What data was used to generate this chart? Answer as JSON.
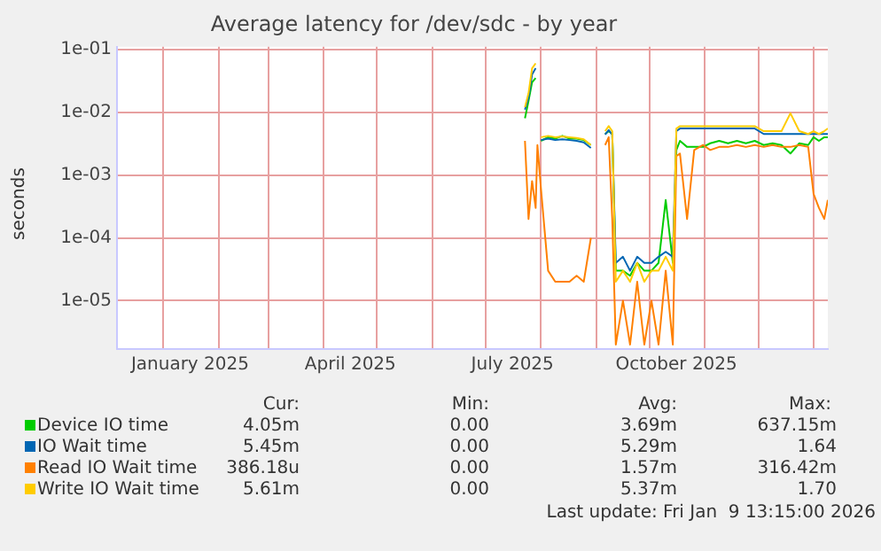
{
  "chart_data": {
    "type": "line",
    "title": "Average latency for /dev/sdc - by year",
    "ylabel": "seconds",
    "log": true,
    "grid": true,
    "legend": "bottom",
    "marker": "none",
    "line_style": "solid",
    "xlim": [
      "2024-12-06",
      "2026-01-09"
    ],
    "xticks": [
      {
        "value": "2025-01-01",
        "label": null
      },
      {
        "value": "2025-01-16",
        "label": "January 2025"
      },
      {
        "value": "2025-02-01",
        "label": null
      },
      {
        "value": "2025-03-01",
        "label": null
      },
      {
        "value": "2025-04-01",
        "label": null
      },
      {
        "value": "2025-04-16",
        "label": "April 2025"
      },
      {
        "value": "2025-05-01",
        "label": null
      },
      {
        "value": "2025-06-01",
        "label": null
      },
      {
        "value": "2025-07-01",
        "label": null
      },
      {
        "value": "2025-07-16",
        "label": "July 2025"
      },
      {
        "value": "2025-08-01",
        "label": null
      },
      {
        "value": "2025-09-01",
        "label": null
      },
      {
        "value": "2025-10-01",
        "label": null
      },
      {
        "value": "2025-10-16",
        "label": "October 2025"
      },
      {
        "value": "2025-11-01",
        "label": null
      },
      {
        "value": "2025-12-01",
        "label": null
      },
      {
        "value": "2026-01-01",
        "label": null
      }
    ],
    "ylim": [
      1.7e-06,
      0.11
    ],
    "yticks": [
      {
        "value": 1e-05,
        "label": "1e-05"
      },
      {
        "value": 0.0001,
        "label": "1e-04"
      },
      {
        "value": 0.001,
        "label": "1e-03"
      },
      {
        "value": 0.01,
        "label": "1e-02"
      },
      {
        "value": 0.1,
        "label": "1e-01"
      }
    ],
    "x": [
      "2025-07-23",
      "2025-07-25",
      "2025-07-27",
      "2025-07-29",
      "2025-07-30",
      "2025-08-01",
      "2025-08-05",
      "2025-08-09",
      "2025-08-13",
      "2025-08-17",
      "2025-08-21",
      "2025-08-25",
      "2025-08-29",
      "2025-08-31",
      "2025-09-06",
      "2025-09-08",
      "2025-09-10",
      "2025-09-12",
      "2025-09-16",
      "2025-09-20",
      "2025-09-24",
      "2025-09-28",
      "2025-10-02",
      "2025-10-06",
      "2025-10-10",
      "2025-10-14",
      "2025-10-16",
      "2025-10-18",
      "2025-10-22",
      "2025-10-26",
      "2025-10-31",
      "2025-11-04",
      "2025-11-09",
      "2025-11-14",
      "2025-11-19",
      "2025-11-24",
      "2025-11-29",
      "2025-12-04",
      "2025-12-09",
      "2025-12-14",
      "2025-12-19",
      "2025-12-24",
      "2025-12-29",
      "2026-01-01",
      "2026-01-04",
      "2026-01-07",
      "2026-01-09"
    ],
    "series": [
      {
        "name": "Device IO time",
        "color": "#00cc00",
        "values": [
          0.008,
          0.015,
          0.03,
          0.035,
          null,
          0.0035,
          0.004,
          0.0038,
          0.0042,
          0.0038,
          0.0038,
          0.0036,
          0.003,
          null,
          0.0045,
          0.005,
          0.0045,
          3e-05,
          3e-05,
          2.5e-05,
          4e-05,
          3e-05,
          3e-05,
          4e-05,
          0.0004,
          4e-05,
          0.0025,
          0.0035,
          0.0028,
          0.0028,
          0.0028,
          0.0032,
          0.0035,
          0.0032,
          0.0035,
          0.0032,
          0.0035,
          0.003,
          0.0032,
          0.003,
          0.0022,
          0.0032,
          0.003,
          0.004,
          0.0035,
          0.004,
          0.004
        ]
      },
      {
        "name": "IO Wait time",
        "color": "#0066b3",
        "values": [
          0.011,
          0.017,
          0.04,
          0.05,
          null,
          0.0036,
          0.0038,
          0.0036,
          0.0037,
          0.0036,
          0.0035,
          0.0033,
          0.0027,
          null,
          0.0044,
          0.0052,
          0.0044,
          4e-05,
          5e-05,
          3e-05,
          5e-05,
          4e-05,
          4e-05,
          5e-05,
          6e-05,
          5e-05,
          0.005,
          0.0055,
          0.0055,
          0.0055,
          0.0055,
          0.0055,
          0.0055,
          0.0055,
          0.0055,
          0.0055,
          0.0055,
          0.0045,
          0.0045,
          0.0045,
          0.0045,
          0.0045,
          0.0045,
          0.0045,
          0.0045,
          0.0045,
          0.0045
        ]
      },
      {
        "name": "Read IO Wait time",
        "color": "#ff8000",
        "values": [
          0.0035,
          0.0002,
          0.0008,
          0.0003,
          0.003,
          0.0006,
          3e-05,
          2e-05,
          2e-05,
          2e-05,
          2.5e-05,
          2e-05,
          0.0001,
          null,
          0.003,
          0.004,
          0.0002,
          2e-06,
          1e-05,
          2e-06,
          2e-05,
          2e-06,
          1e-05,
          2e-06,
          3e-05,
          2e-06,
          0.002,
          0.0022,
          0.0002,
          0.0025,
          0.003,
          0.0025,
          0.0028,
          0.0028,
          0.003,
          0.0028,
          0.003,
          0.0028,
          0.003,
          0.0028,
          0.0028,
          0.003,
          0.0028,
          0.0005,
          0.0003,
          0.0002,
          0.0004
        ]
      },
      {
        "name": "Write IO Wait time",
        "color": "#ffcc00",
        "values": [
          0.012,
          0.02,
          0.05,
          0.06,
          null,
          0.004,
          0.0042,
          0.004,
          0.0041,
          0.004,
          0.0039,
          0.0037,
          0.003,
          null,
          0.005,
          0.006,
          0.005,
          2e-05,
          3e-05,
          2e-05,
          4e-05,
          2e-05,
          3e-05,
          3e-05,
          5e-05,
          3e-05,
          0.0055,
          0.006,
          0.006,
          0.006,
          0.006,
          0.006,
          0.006,
          0.006,
          0.006,
          0.006,
          0.006,
          0.005,
          0.005,
          0.005,
          0.0096,
          0.005,
          0.0045,
          0.005,
          0.0045,
          0.005,
          0.0055
        ]
      }
    ],
    "annotations": [
      "Cur:",
      "Min:",
      "Avg:",
      "Max:",
      "4.05m",
      "0.00",
      "3.69m",
      "637.15m",
      "5.45m",
      "0.00",
      "5.29m",
      "1.64",
      "386.18u",
      "0.00",
      "1.57m",
      "316.42m",
      "5.61m",
      "0.00",
      "5.37m",
      "1.70",
      "Last update: Fri Jan  9 13:15:00 2026"
    ]
  }
}
